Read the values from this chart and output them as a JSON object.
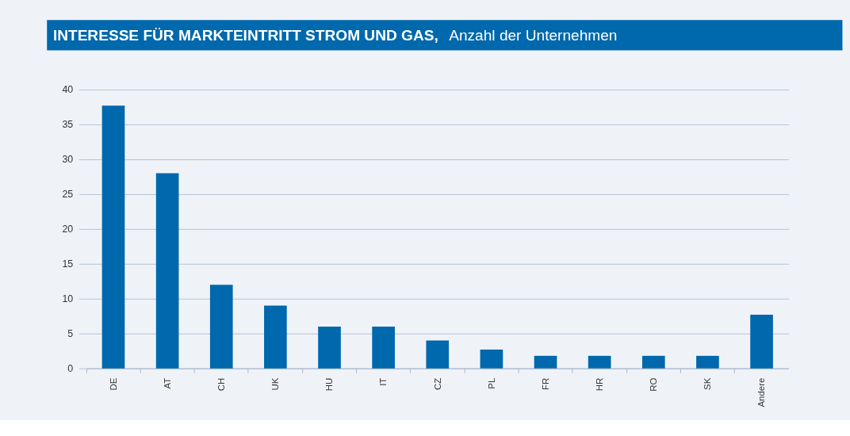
{
  "chart_data": {
    "type": "bar",
    "title": "INTERESSE FÜR MARKTEINTRITT STROM UND GAS,",
    "subtitle": "Anzahl der Unternehmen",
    "categories": [
      "DE",
      "AT",
      "CH",
      "UK",
      "HU",
      "IT",
      "CZ",
      "PL",
      "FR",
      "HR",
      "RO",
      "SK",
      "Andere"
    ],
    "values": [
      37.7,
      28,
      12,
      9,
      6,
      6,
      4,
      2.7,
      1.8,
      1.8,
      1.8,
      1.8,
      7.7
    ],
    "color": "#0068ad",
    "ylim": [
      0,
      40
    ],
    "yticks": [
      0,
      5,
      10,
      15,
      20,
      25,
      30,
      35,
      40
    ],
    "grid": "y"
  }
}
